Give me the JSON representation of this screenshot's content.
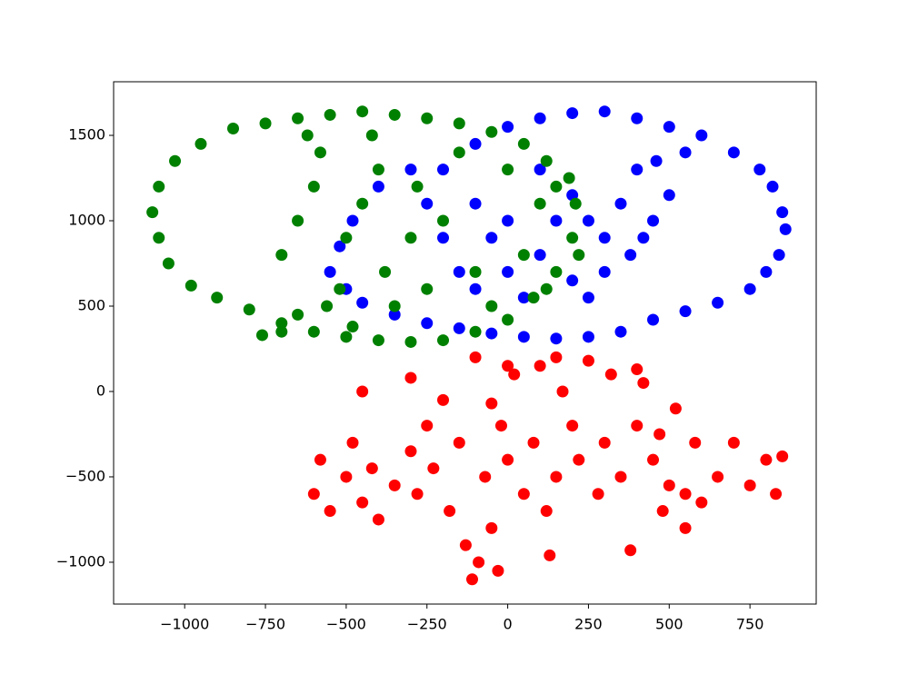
{
  "chart_data": {
    "type": "scatter",
    "xlim": [
      -1220,
      955
    ],
    "ylim": [
      -1245,
      1814
    ],
    "xticks": [
      {
        "value": -1000,
        "label": "−1000"
      },
      {
        "value": -750,
        "label": "−750"
      },
      {
        "value": -500,
        "label": "−500"
      },
      {
        "value": -250,
        "label": "−250"
      },
      0,
      250,
      500,
      750
    ],
    "yticks": [
      {
        "value": -1000,
        "label": "−1000"
      },
      {
        "value": -500,
        "label": "−500"
      },
      0,
      500,
      1000,
      1500
    ],
    "series": [
      {
        "color": "#0000ff",
        "x": [
          -200,
          -100,
          0,
          100,
          200,
          300,
          400,
          500,
          600,
          700,
          780,
          820,
          850,
          860,
          840,
          800,
          750,
          650,
          550,
          450,
          350,
          250,
          150,
          50,
          -50,
          -150,
          -250,
          -350,
          -450,
          -500,
          -550,
          -520,
          -480,
          -400,
          -300,
          -100,
          -50,
          0,
          50,
          100,
          150,
          200,
          250,
          300,
          350,
          400,
          450,
          500,
          420,
          380,
          -200,
          -150,
          -100,
          0,
          100,
          200,
          250,
          300,
          460,
          550,
          -250
        ],
        "y": [
          1300,
          1450,
          1550,
          1600,
          1630,
          1640,
          1600,
          1550,
          1500,
          1400,
          1300,
          1200,
          1050,
          950,
          800,
          700,
          600,
          520,
          470,
          420,
          350,
          320,
          310,
          320,
          340,
          370,
          400,
          450,
          520,
          600,
          700,
          850,
          1000,
          1200,
          1300,
          1100,
          900,
          700,
          550,
          800,
          1000,
          1150,
          1000,
          900,
          1100,
          1300,
          1000,
          1150,
          900,
          800,
          900,
          700,
          600,
          1000,
          1300,
          650,
          550,
          700,
          1350,
          1400,
          1100
        ]
      },
      {
        "color": "#008000",
        "x": [
          -1100,
          -1080,
          -1050,
          -980,
          -900,
          -800,
          -700,
          -600,
          -500,
          -400,
          -300,
          -200,
          -100,
          0,
          80,
          150,
          200,
          210,
          190,
          120,
          50,
          -50,
          -150,
          -250,
          -350,
          -450,
          -550,
          -650,
          -750,
          -850,
          -950,
          -1030,
          -1080,
          -700,
          -650,
          -600,
          -580,
          -520,
          -500,
          -450,
          -400,
          -380,
          -350,
          -300,
          -280,
          -250,
          -200,
          -150,
          -100,
          -50,
          0,
          50,
          100,
          150,
          120,
          -700,
          -650,
          -560,
          -480,
          -420,
          -620,
          -760,
          220
        ],
        "y": [
          1050,
          900,
          750,
          620,
          550,
          480,
          400,
          350,
          320,
          300,
          290,
          300,
          350,
          420,
          550,
          700,
          900,
          1100,
          1250,
          1350,
          1450,
          1520,
          1570,
          1600,
          1620,
          1640,
          1620,
          1600,
          1570,
          1540,
          1450,
          1350,
          1200,
          800,
          1000,
          1200,
          1400,
          600,
          900,
          1100,
          1300,
          700,
          500,
          900,
          1200,
          600,
          1000,
          1400,
          700,
          500,
          1300,
          800,
          1100,
          1200,
          600,
          350,
          450,
          500,
          380,
          1500,
          1500,
          330,
          800
        ]
      },
      {
        "color": "#ff0000",
        "x": [
          -600,
          -580,
          -550,
          -500,
          -480,
          -450,
          -420,
          -400,
          -350,
          -300,
          -280,
          -250,
          -230,
          -200,
          -180,
          -150,
          -130,
          -110,
          -90,
          -70,
          -50,
          -30,
          -20,
          0,
          20,
          50,
          80,
          100,
          120,
          150,
          170,
          200,
          220,
          250,
          280,
          300,
          320,
          350,
          380,
          400,
          420,
          450,
          480,
          500,
          520,
          550,
          580,
          600,
          650,
          700,
          750,
          800,
          830,
          850,
          -450,
          -300,
          -100,
          0,
          150,
          400,
          470,
          130,
          -50,
          550
        ],
        "y": [
          -600,
          -400,
          -700,
          -500,
          -300,
          -650,
          -450,
          -750,
          -550,
          -350,
          -600,
          -200,
          -450,
          -50,
          -700,
          -300,
          -900,
          -1100,
          -1000,
          -500,
          -800,
          -1050,
          -200,
          -400,
          100,
          -600,
          -300,
          150,
          -700,
          -500,
          0,
          -200,
          -400,
          180,
          -600,
          -300,
          100,
          -500,
          -930,
          -200,
          50,
          -400,
          -700,
          -550,
          -100,
          -600,
          -300,
          -650,
          -500,
          -300,
          -550,
          -400,
          -600,
          -380,
          0,
          80,
          200,
          150,
          200,
          130,
          -250,
          -960,
          -70,
          -800
        ]
      }
    ]
  }
}
